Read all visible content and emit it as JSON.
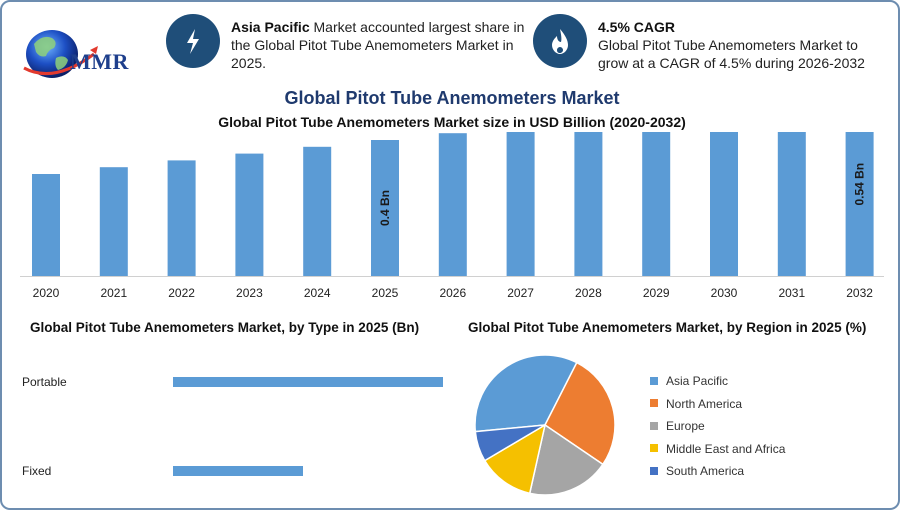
{
  "logo": {
    "text": "MMR"
  },
  "highlights": [
    {
      "icon": "lightning-bolt-icon",
      "bold": "Asia Pacific",
      "text": " Market accounted largest share in the Global Pitot Tube Anemometers Market in 2025."
    },
    {
      "icon": "growth-flame-icon",
      "bold": "4.5% CAGR",
      "text": "Global Pitot Tube Anemometers Market to grow at a CAGR of 4.5% during 2026-2032"
    }
  ],
  "title": "Global Pitot Tube Anemometers Market",
  "colors": {
    "primary_bar": "#5b9bd5",
    "navy": "#1f4e79",
    "title": "#1f3a6e"
  },
  "chart_data": [
    {
      "type": "bar",
      "title": "Global Pitot Tube Anemometers Market size in USD Billion (2020-2032)",
      "categories": [
        "2020",
        "2021",
        "2022",
        "2023",
        "2024",
        "2025",
        "2026",
        "2027",
        "2028",
        "2029",
        "2030",
        "2031",
        "2032"
      ],
      "values": [
        0.3,
        0.32,
        0.34,
        0.36,
        0.38,
        0.4,
        0.42,
        0.44,
        0.46,
        0.48,
        0.5,
        0.52,
        0.54
      ],
      "data_labels": [
        {
          "category": "2025",
          "text": "0.4 Bn"
        },
        {
          "category": "2032",
          "text": "0.54 Bn"
        }
      ],
      "ylim": [
        0,
        0.6
      ],
      "grid": false
    },
    {
      "type": "bar",
      "orientation": "horizontal",
      "title": "Global Pitot Tube Anemometers Market, by Type in 2025 (Bn)",
      "categories": [
        "Portable",
        "Fixed"
      ],
      "values": [
        0.27,
        0.13
      ]
    },
    {
      "type": "pie",
      "title": "Global Pitot Tube Anemometers Market, by Region in 2025 (%)",
      "labels": [
        "Asia Pacific",
        "North America",
        "Europe",
        "Middle East and Africa",
        "South America"
      ],
      "values": [
        34,
        27,
        19,
        13,
        7
      ],
      "colors": [
        "#5b9bd5",
        "#ed7d31",
        "#a5a5a5",
        "#f5c000",
        "#4472c4"
      ],
      "legend_position": "right"
    }
  ]
}
